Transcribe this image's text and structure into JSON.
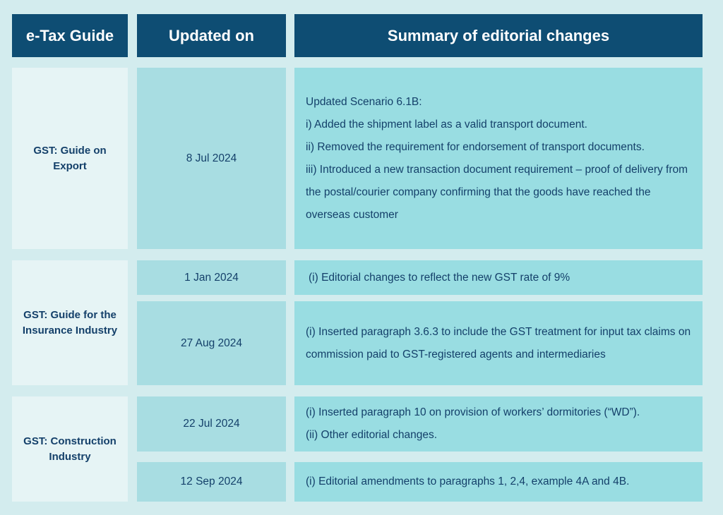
{
  "headers": {
    "guide": "e-Tax Guide",
    "updated": "Updated on",
    "summary": "Summary of editorial changes"
  },
  "rows": [
    {
      "guide": "GST: Guide on Export",
      "entries": [
        {
          "date": "8 Jul 2024",
          "lines": [
            "Updated Scenario 6.1B:",
            "i) Added the shipment label as a valid transport document.",
            "ii) Removed the requirement for endorsement of transport documents.",
            "iii) Introduced a new transaction document requirement – proof of delivery from the postal/courier company confirming that the goods have reached the overseas customer"
          ]
        }
      ]
    },
    {
      "guide": "GST: Guide for the Insurance Industry",
      "entries": [
        {
          "date": "1 Jan 2024",
          "lines": [
            "(i) Editorial changes to reflect the new GST rate of 9%"
          ]
        },
        {
          "date": "27 Aug 2024",
          "lines": [
            "(i) Inserted paragraph 3.6.3 to include the GST treatment for input tax claims on commission paid to GST-registered agents and intermediaries"
          ]
        }
      ]
    },
    {
      "guide": "GST: Construction Industry",
      "entries": [
        {
          "date": "22 Jul 2024",
          "lines": [
            "(i) Inserted paragraph 10 on provision of workers’ dormitories (“WD”).",
            "(ii) Other editorial changes."
          ]
        },
        {
          "date": "12 Sep 2024",
          "lines": [
            "(i) Editorial amendments to paragraphs 1, 2,4, example 4A and 4B."
          ]
        }
      ]
    }
  ]
}
